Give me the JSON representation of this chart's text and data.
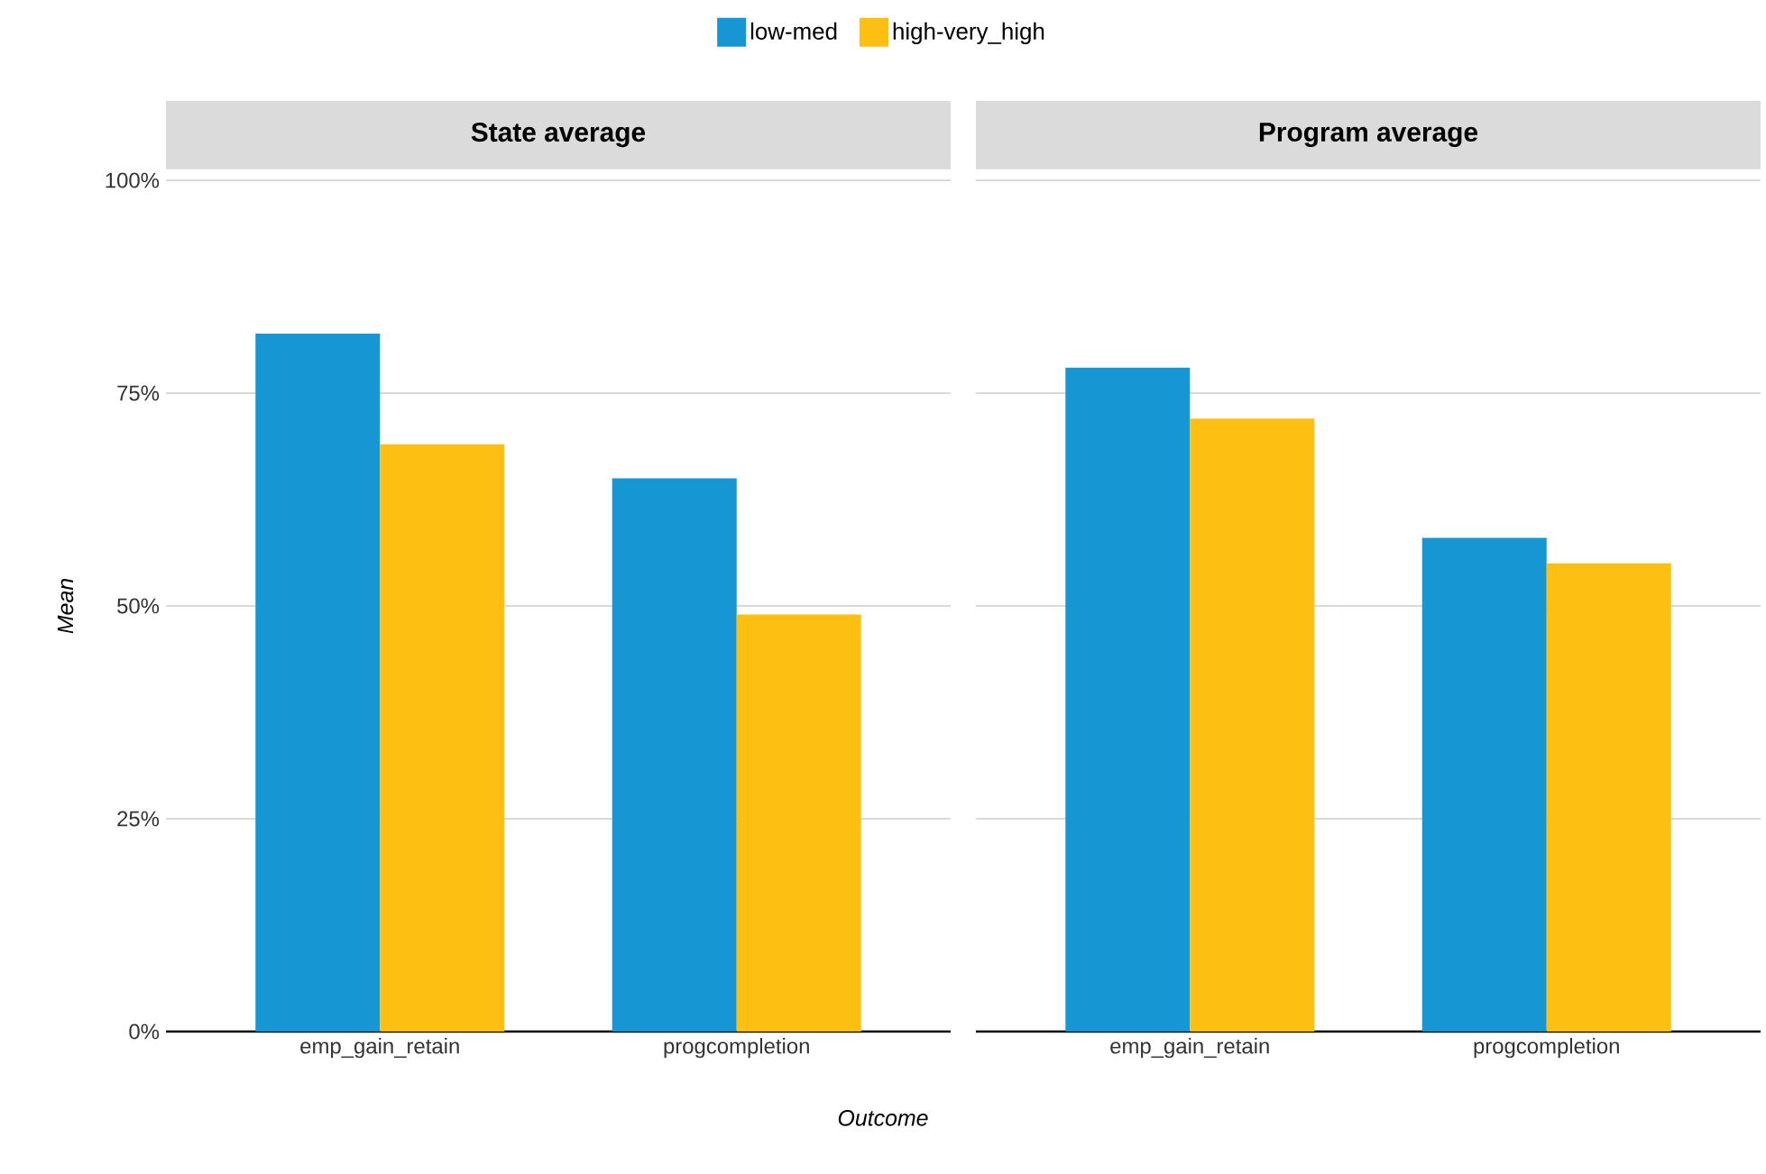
{
  "chart_data": [
    {
      "type": "bar",
      "title": "State average",
      "xlabel": "Outcome",
      "ylabel": "Mean",
      "categories": [
        "emp_gain_retain",
        "progcompletion"
      ],
      "series": [
        {
          "name": "low-med",
          "color": "#1696d2",
          "values": [
            82,
            65
          ]
        },
        {
          "name": "high-very_high",
          "color": "#fdbf11",
          "values": [
            69,
            49
          ]
        }
      ],
      "ylim": [
        0,
        100
      ],
      "yticks": [
        {
          "value": 0,
          "label": "0%"
        },
        {
          "value": 25,
          "label": "25%"
        },
        {
          "value": 50,
          "label": "50%"
        },
        {
          "value": 75,
          "label": "75%"
        },
        {
          "value": 100,
          "label": "100%"
        }
      ],
      "grid": "y",
      "legend": "top"
    },
    {
      "type": "bar",
      "title": "Program average",
      "categories": [
        "emp_gain_retain",
        "progcompletion"
      ],
      "series": [
        {
          "color": "#1696d2",
          "values": [
            78,
            58
          ]
        },
        {
          "color": "#fdbf11",
          "values": [
            72,
            55
          ]
        }
      ],
      "ylim": [
        0,
        100
      ],
      "yticks": [
        {
          "value": 0,
          "label": null
        },
        {
          "value": 25,
          "label": null
        },
        {
          "value": 50,
          "label": null
        },
        {
          "value": 75,
          "label": null
        },
        {
          "value": 100,
          "label": null
        }
      ],
      "grid": "y",
      "tick_labels": "x"
    }
  ]
}
